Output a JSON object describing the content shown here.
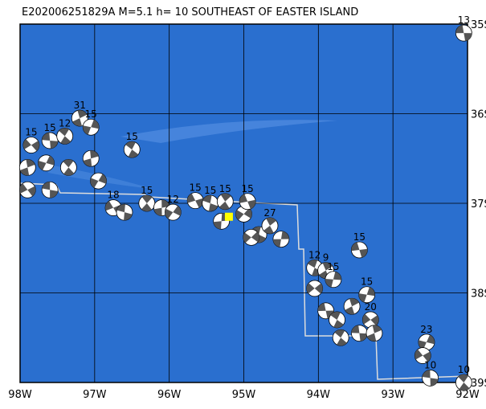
{
  "map": {
    "title": "E202006251829A M=5.1 h= 10 SOUTHEAST OF EASTER ISLAND",
    "xlim": [
      -98,
      -92
    ],
    "ylim": [
      -39,
      -35
    ],
    "xticks": [
      {
        "value": -98,
        "label": "98W"
      },
      {
        "value": -97,
        "label": "97W"
      },
      {
        "value": -96,
        "label": "96W"
      },
      {
        "value": -95,
        "label": "95W"
      },
      {
        "value": -94,
        "label": "94W"
      },
      {
        "value": -93,
        "label": "93W"
      },
      {
        "value": -92,
        "label": "92W"
      }
    ],
    "yticks": [
      {
        "value": -35,
        "label": "35S"
      },
      {
        "value": -36,
        "label": "36S"
      },
      {
        "value": -37,
        "label": "37S"
      },
      {
        "value": -38,
        "label": "38S"
      },
      {
        "value": -39,
        "label": "39S"
      }
    ],
    "epicenter": {
      "lon": -95.2,
      "lat": -37.15
    },
    "events": [
      {
        "lon": -92.05,
        "lat": -35.1,
        "label": "13"
      },
      {
        "lon": -96.5,
        "lat": -36.4,
        "label": "15"
      },
      {
        "lon": -97.2,
        "lat": -36.05,
        "label": "31"
      },
      {
        "lon": -97.05,
        "lat": -36.15,
        "label": "15"
      },
      {
        "lon": -97.85,
        "lat": -36.35,
        "label": "15"
      },
      {
        "lon": -97.6,
        "lat": -36.3,
        "label": "15"
      },
      {
        "lon": -97.4,
        "lat": -36.25,
        "label": "12"
      },
      {
        "lon": -97.9,
        "lat": -36.6
      },
      {
        "lon": -97.65,
        "lat": -36.55
      },
      {
        "lon": -97.9,
        "lat": -36.85
      },
      {
        "lon": -97.6,
        "lat": -36.85
      },
      {
        "lon": -97.35,
        "lat": -36.6
      },
      {
        "lon": -97.05,
        "lat": -36.5
      },
      {
        "lon": -96.95,
        "lat": -36.75
      },
      {
        "lon": -96.75,
        "lat": -37.05,
        "label": "18"
      },
      {
        "lon": -96.6,
        "lat": -37.1
      },
      {
        "lon": -96.3,
        "lat": -37.0,
        "label": "15"
      },
      {
        "lon": -96.1,
        "lat": -37.05
      },
      {
        "lon": -95.95,
        "lat": -37.1,
        "label": "12"
      },
      {
        "lon": -95.65,
        "lat": -36.97,
        "label": "15"
      },
      {
        "lon": -95.45,
        "lat": -37.0,
        "label": "15"
      },
      {
        "lon": -95.25,
        "lat": -36.98,
        "label": "15"
      },
      {
        "lon": -95.3,
        "lat": -37.2
      },
      {
        "lon": -95.0,
        "lat": -37.12
      },
      {
        "lon": -94.95,
        "lat": -36.98,
        "label": "15"
      },
      {
        "lon": -94.8,
        "lat": -37.35
      },
      {
        "lon": -94.65,
        "lat": -37.25,
        "label": "27"
      },
      {
        "lon": -94.5,
        "lat": -37.4
      },
      {
        "lon": -94.9,
        "lat": -37.38
      },
      {
        "lon": -93.45,
        "lat": -37.52,
        "label": "15"
      },
      {
        "lon": -94.05,
        "lat": -37.72,
        "label": "12"
      },
      {
        "lon": -93.9,
        "lat": -37.75,
        "label": "9"
      },
      {
        "lon": -93.8,
        "lat": -37.85,
        "label": "15"
      },
      {
        "lon": -94.05,
        "lat": -37.95
      },
      {
        "lon": -93.9,
        "lat": -38.2
      },
      {
        "lon": -93.75,
        "lat": -38.3
      },
      {
        "lon": -93.55,
        "lat": -38.15
      },
      {
        "lon": -93.35,
        "lat": -38.02,
        "label": "15"
      },
      {
        "lon": -93.3,
        "lat": -38.3,
        "label": "20"
      },
      {
        "lon": -93.45,
        "lat": -38.45
      },
      {
        "lon": -93.7,
        "lat": -38.5
      },
      {
        "lon": -93.25,
        "lat": -38.45
      },
      {
        "lon": -92.55,
        "lat": -38.55,
        "label": "23"
      },
      {
        "lon": -92.6,
        "lat": -38.7
      },
      {
        "lon": -92.5,
        "lat": -38.95,
        "label": "10"
      },
      {
        "lon": -92.05,
        "lat": -39.0,
        "label": "10"
      }
    ]
  }
}
